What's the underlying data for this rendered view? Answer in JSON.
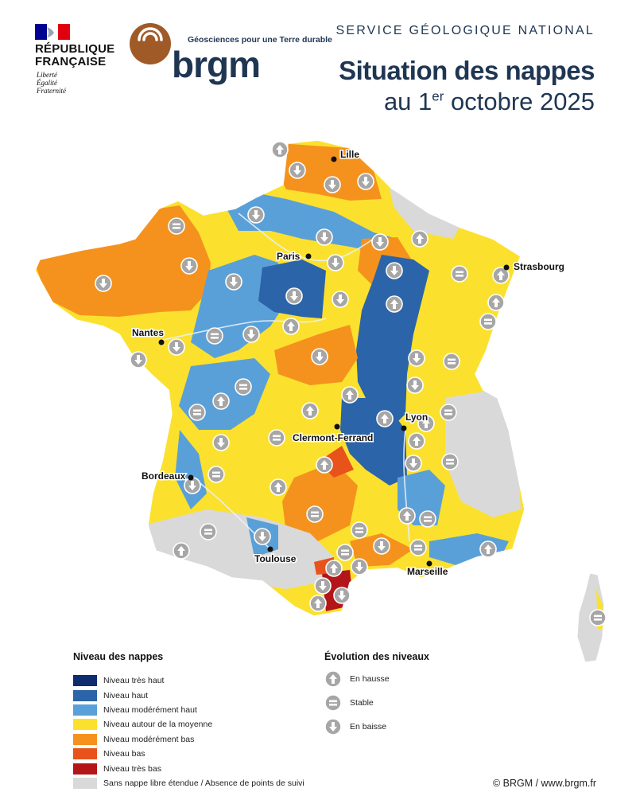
{
  "header": {
    "republic_line1": "RÉPUBLIQUE",
    "republic_line2": "FRANÇAISE",
    "motto_1": "Liberté",
    "motto_2": "Égalité",
    "motto_3": "Fraternité",
    "brgm_tagline": "Géosciences pour une Terre durable",
    "brgm_word": "brgm",
    "service": "SERVICE GÉOLOGIQUE NATIONAL",
    "title_line1": "Situation des nappes",
    "title_line2_prefix": "au 1",
    "title_line2_sup": "er",
    "title_line2_suffix": " octobre 2025"
  },
  "colors": {
    "tres_haut": "#0f2c6e",
    "haut": "#2b64a8",
    "moderement_haut": "#5aa0d8",
    "moyenne": "#fbe12e",
    "moderement_bas": "#f5921e",
    "bas": "#e8521b",
    "tres_bas": "#b41518",
    "sans_nappe": "#d9d9d9",
    "icon_grey": "#a6a6a6"
  },
  "map": {
    "cities": [
      {
        "name": "Lille"
      },
      {
        "name": "Paris"
      },
      {
        "name": "Strasbourg"
      },
      {
        "name": "Nantes"
      },
      {
        "name": "Lyon"
      },
      {
        "name": "Clermont-Ferrand"
      },
      {
        "name": "Bordeaux"
      },
      {
        "name": "Toulouse"
      },
      {
        "name": "Marseille"
      }
    ]
  },
  "legend": {
    "levels_title": "Niveau des nappes",
    "levels": [
      {
        "label": "Niveau très haut",
        "color": "#0f2c6e"
      },
      {
        "label": "Niveau haut",
        "color": "#2b64a8"
      },
      {
        "label": "Niveau modérément haut",
        "color": "#5aa0d8"
      },
      {
        "label": "Niveau autour de la moyenne",
        "color": "#fbe12e"
      },
      {
        "label": "Niveau modérément bas",
        "color": "#f5921e"
      },
      {
        "label": "Niveau bas",
        "color": "#e8521b"
      },
      {
        "label": "Niveau très bas",
        "color": "#b41518"
      },
      {
        "label": "Sans nappe libre étendue / Absence de points de suivi",
        "color": "#d9d9d9"
      }
    ],
    "evolution_title": "Évolution des niveaux",
    "evolution": [
      {
        "label": "En hausse",
        "icon": "arrow-up-icon"
      },
      {
        "label": "Stable",
        "icon": "equals-icon"
      },
      {
        "label": "En baisse",
        "icon": "arrow-down-icon"
      }
    ]
  },
  "footer": {
    "copyright": "© BRGM / www.brgm.fr"
  }
}
